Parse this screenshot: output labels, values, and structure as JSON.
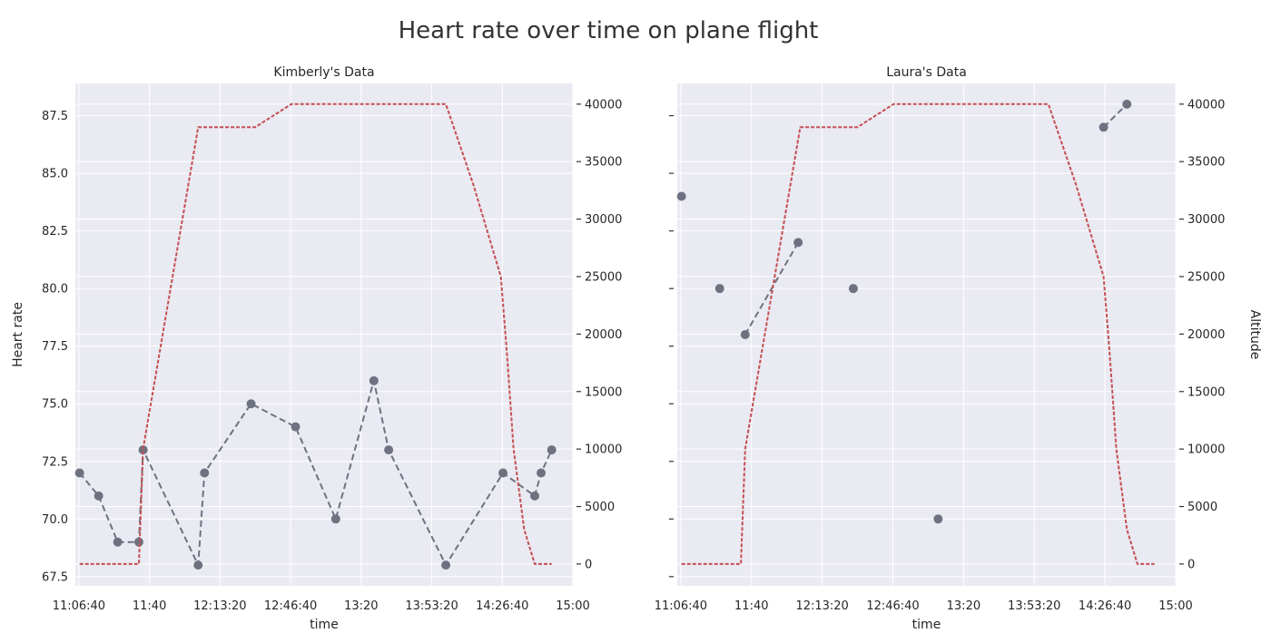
{
  "figure": {
    "title": "Heart rate over time on plane flight"
  },
  "colors": {
    "background": "#eaeaf2",
    "grid": "#ffffff",
    "heart_rate": "#6e7280",
    "altitude": "#c44e52",
    "text": "#262626"
  },
  "chart_data": [
    {
      "type": "line",
      "title": "Kimberly's Data",
      "xlabel": "time",
      "ylabel": "Heart rate",
      "y2label": "",
      "x_ticks": [
        "11:06:40",
        "11:40",
        "12:13:20",
        "12:46:40",
        "13:20",
        "13:53:20",
        "14:26:40",
        "15:00"
      ],
      "y_ticks": [
        "67.5",
        "70.0",
        "72.5",
        "75.0",
        "77.5",
        "80.0",
        "82.5",
        "85.0",
        "87.5"
      ],
      "y2_ticks": [
        "0",
        "5000",
        "10000",
        "15000",
        "20000",
        "25000",
        "30000",
        "35000",
        "40000"
      ],
      "xlim": [
        "11:05",
        "15:00"
      ],
      "ylim": [
        67.1,
        88.9
      ],
      "y2lim": [
        -1900,
        41800
      ],
      "grid": true,
      "series": [
        {
          "name": "Heart rate",
          "axis": "left",
          "style": "dashed-marker",
          "x": [
            "11:07",
            "11:16",
            "11:25",
            "11:35",
            "11:37",
            "12:03",
            "12:06",
            "12:28",
            "12:49",
            "13:08",
            "13:26",
            "13:33",
            "14:00",
            "14:27",
            "14:42",
            "14:45",
            "14:50"
          ],
          "values": [
            72,
            71,
            69,
            69,
            73,
            68,
            72,
            75,
            74,
            70,
            76,
            73,
            68,
            72,
            71,
            72,
            73
          ]
        },
        {
          "name": "Altitude",
          "axis": "right",
          "style": "dashed",
          "x": [
            "11:07",
            "11:35",
            "11:37",
            "12:03",
            "12:30",
            "12:47",
            "14:00",
            "14:13",
            "14:26",
            "14:29",
            "14:32",
            "14:37",
            "14:42",
            "14:45",
            "14:50"
          ],
          "values": [
            0,
            0,
            10000,
            38000,
            38000,
            40000,
            40000,
            33000,
            25000,
            18000,
            10000,
            3000,
            0,
            0,
            0
          ]
        }
      ]
    },
    {
      "type": "line",
      "title": "Laura's Data",
      "xlabel": "time",
      "ylabel": "",
      "y2label": "Altitude",
      "x_ticks": [
        "11:06:40",
        "11:40",
        "12:13:20",
        "12:46:40",
        "13:20",
        "13:53:20",
        "14:26:40",
        "15:00"
      ],
      "y_ticks": [],
      "y2_ticks": [
        "0",
        "5000",
        "10000",
        "15000",
        "20000",
        "25000",
        "30000",
        "35000",
        "40000"
      ],
      "xlim": [
        "11:05",
        "15:00"
      ],
      "ylim": [
        67.1,
        88.9
      ],
      "y2lim": [
        -1900,
        41800
      ],
      "grid": true,
      "series": [
        {
          "name": "Heart rate",
          "axis": "left",
          "style": "dashed-marker",
          "x": [
            "11:07",
            "11:25",
            "11:37",
            "12:02",
            "12:28",
            "13:08",
            "14:26",
            "14:37"
          ],
          "values": [
            84,
            80,
            78,
            82,
            80,
            70,
            87,
            88
          ],
          "segments": [
            [
              2,
              3
            ],
            [
              6,
              7
            ]
          ]
        },
        {
          "name": "Altitude",
          "axis": "right",
          "style": "dashed",
          "x": [
            "11:07",
            "11:35",
            "11:37",
            "12:03",
            "12:30",
            "12:47",
            "14:00",
            "14:13",
            "14:26",
            "14:29",
            "14:32",
            "14:37",
            "14:42",
            "14:45",
            "14:50"
          ],
          "values": [
            0,
            0,
            10000,
            38000,
            38000,
            40000,
            40000,
            33000,
            25000,
            18000,
            10000,
            3000,
            0,
            0,
            0
          ]
        }
      ]
    }
  ]
}
